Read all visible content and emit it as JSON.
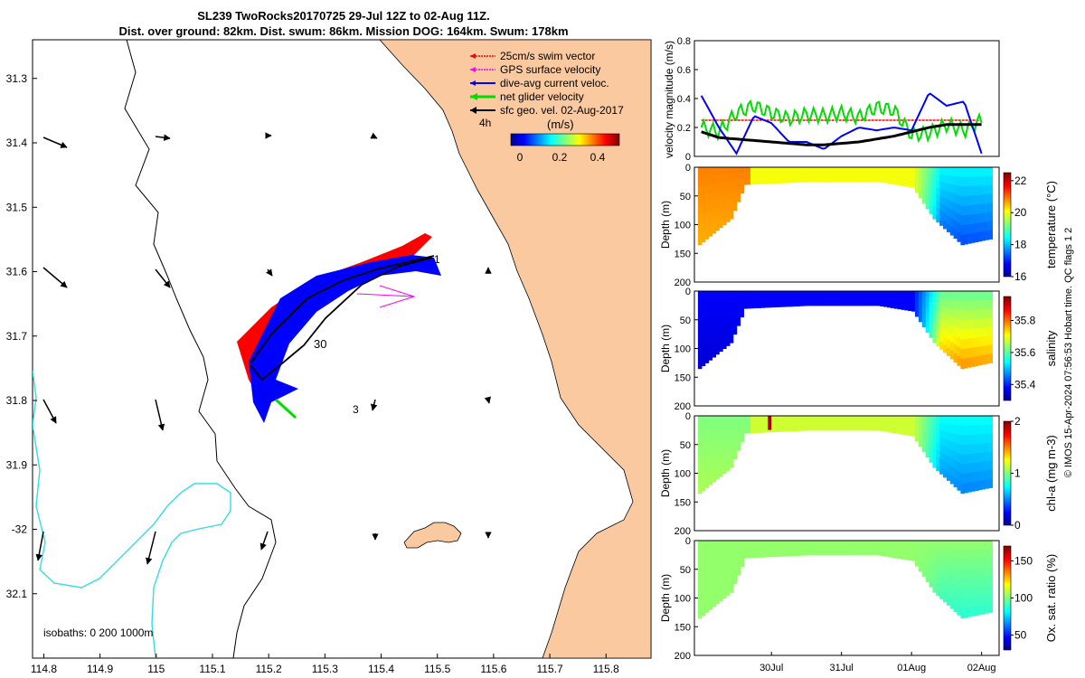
{
  "header": {
    "line1": "SL239 TwoRocks20170725 29-Jul 12Z to 02-Aug 11Z.",
    "line2": "Dist. over ground: 82km. Dist. swum: 86km. Mission DOG: 164km. Swum: 178km"
  },
  "map": {
    "lon_ticks": [
      "114.8",
      "114.9",
      "115",
      "115.1",
      "115.2",
      "115.3",
      "115.4",
      "115.5",
      "115.6",
      "115.7",
      "115.8"
    ],
    "lat_ticks": [
      "31.3",
      "31.4",
      "31.5",
      "31.6",
      "31.7",
      "31.8",
      "31.9",
      "-32",
      "32.1"
    ],
    "lon_range": [
      114.78,
      115.88
    ],
    "lat_range": [
      -32.2,
      -31.24
    ],
    "legend": [
      {
        "label": "25cm/s swim vector",
        "color": "#ff0000"
      },
      {
        "label": "GPS surface velocity",
        "color": "#ff00ff"
      },
      {
        "label": "dive-avg current veloc.",
        "color": "#0000ff"
      },
      {
        "label": "net glider velocity",
        "color": "#00dd00"
      },
      {
        "label": "sfc geo. vel. 02-Aug-2017",
        "color": "#000000"
      }
    ],
    "scale_label": "4h",
    "colorbar_title": "(m/s)",
    "colorbar_ticks": [
      "0",
      "0.2",
      "0.4"
    ],
    "track_labels": [
      "1",
      "30",
      "3"
    ],
    "isobath_label": "isobaths: 0   200  1000m",
    "colors": {
      "land": "#fac9a0",
      "isobath_200": "#000000",
      "isobath_1000": "#33dde0"
    }
  },
  "chart_data": [
    {
      "type": "line",
      "id": "velocity",
      "ylabel": "velocity magnitude (m/s)",
      "ylim": [
        0,
        0.8
      ],
      "yticks": [
        "0",
        "0.2",
        "0.4",
        "0.6",
        "0.8"
      ],
      "x_days": [
        0,
        0.25,
        0.5,
        0.75,
        1.0,
        1.25,
        1.5,
        1.75,
        2.0,
        2.25,
        2.5,
        2.75,
        3.0,
        3.25,
        3.5,
        3.75,
        4.0
      ],
      "series": [
        {
          "name": "swim",
          "color": "#ff0000",
          "values": [
            0.25,
            0.25,
            0.25,
            0.25,
            0.25,
            0.25,
            0.25,
            0.25,
            0.25,
            0.25,
            0.25,
            0.25,
            0.25,
            0.25,
            0.25,
            0.25,
            0.25
          ]
        },
        {
          "name": "net glider",
          "color": "#00dd00",
          "values": [
            0.2,
            0.17,
            0.3,
            0.35,
            0.3,
            0.26,
            0.29,
            0.28,
            0.3,
            0.27,
            0.34,
            0.32,
            0.15,
            0.16,
            0.22,
            0.18,
            0.25
          ]
        },
        {
          "name": "dive-avg current",
          "color": "#0000ff",
          "values": [
            0.42,
            0.2,
            0.02,
            0.28,
            0.23,
            0.1,
            0.1,
            0.05,
            0.14,
            0.2,
            0.18,
            0.2,
            0.18,
            0.44,
            0.35,
            0.38,
            0.02
          ]
        },
        {
          "name": "surface geostrophic",
          "color": "#000000",
          "values": [
            0.17,
            0.13,
            0.12,
            0.11,
            0.1,
            0.09,
            0.08,
            0.08,
            0.09,
            0.1,
            0.12,
            0.14,
            0.17,
            0.2,
            0.22,
            0.22,
            0.22
          ]
        }
      ]
    },
    {
      "type": "heatmap",
      "id": "temperature",
      "ylabel": "Depth (m)",
      "cbar_label": "temperature (°C)",
      "clim": [
        16,
        22.5
      ],
      "cbar_ticks": [
        "16",
        "18",
        "20",
        "22"
      ],
      "ylim": [
        0,
        200
      ],
      "yticks": [
        "0",
        "50",
        "100",
        "150",
        "200"
      ],
      "floor": [
        {
          "day": 0.0,
          "depth": 130
        },
        {
          "day": 0.4,
          "depth": 90
        },
        {
          "day": 0.6,
          "depth": 30
        },
        {
          "day": 1.5,
          "depth": 25
        },
        {
          "day": 2.5,
          "depth": 25
        },
        {
          "day": 3.0,
          "depth": 35
        },
        {
          "day": 3.3,
          "depth": 90
        },
        {
          "day": 3.7,
          "depth": 135
        },
        {
          "day": 4.1,
          "depth": 125
        }
      ]
    },
    {
      "type": "heatmap",
      "id": "salinity",
      "ylabel": "Depth (m)",
      "cbar_label": "salinity",
      "clim": [
        35.3,
        35.95
      ],
      "cbar_ticks": [
        "35.4",
        "35.6",
        "35.8"
      ],
      "ylim": [
        0,
        200
      ],
      "yticks": [
        "0",
        "50",
        "100",
        "150",
        "200"
      ]
    },
    {
      "type": "heatmap",
      "id": "chla",
      "ylabel": "Depth (m)",
      "cbar_label": "chl-a (mg m-3)",
      "clim": [
        0,
        2
      ],
      "cbar_ticks": [
        "0",
        "1",
        "2"
      ],
      "ylim": [
        0,
        200
      ],
      "yticks": [
        "0",
        "50",
        "100",
        "150",
        "200"
      ]
    },
    {
      "type": "heatmap",
      "id": "oxygen",
      "ylabel": "Depth (m)",
      "cbar_label": "Ox. sat. ratio (%)",
      "clim": [
        30,
        170
      ],
      "cbar_ticks": [
        "50",
        "100",
        "150"
      ],
      "ylim": [
        0,
        200
      ],
      "yticks": [
        "0",
        "50",
        "100",
        "150",
        "200"
      ]
    }
  ],
  "time_axis": {
    "labels": [
      "30Jul",
      "31Jul",
      "01Aug",
      "02Aug"
    ],
    "range_days": [
      -0.1,
      4.25
    ]
  },
  "footer": "© IMOS 15-Apr-2024 07:56:53 Hobart time. QC flags 1  2"
}
